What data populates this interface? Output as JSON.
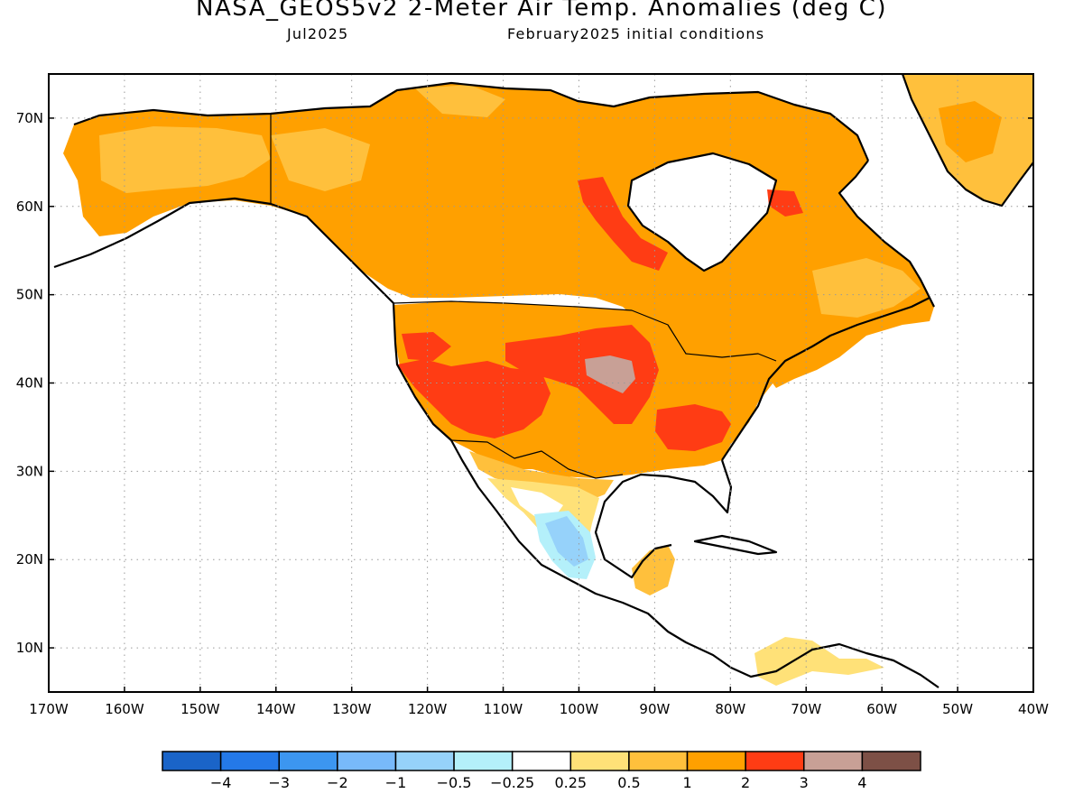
{
  "title": "NASA_GEOS5v2 2-Meter Air Temp. Anomalies (deg C)",
  "subtitle_left": "Jul2025",
  "subtitle_right": "February2025 initial conditions",
  "map": {
    "lon_range": [
      -170,
      -40
    ],
    "lat_range": [
      5,
      75
    ],
    "lat_ticks": [
      {
        "lat": 70,
        "label": "70N"
      },
      {
        "lat": 60,
        "label": "60N"
      },
      {
        "lat": 50,
        "label": "50N"
      },
      {
        "lat": 40,
        "label": "40N"
      },
      {
        "lat": 30,
        "label": "30N"
      },
      {
        "lat": 20,
        "label": "20N"
      },
      {
        "lat": 10,
        "label": "10N"
      }
    ],
    "lon_ticks": [
      {
        "lon": -170,
        "label": "170W"
      },
      {
        "lon": -160,
        "label": "160W"
      },
      {
        "lon": -150,
        "label": "150W"
      },
      {
        "lon": -140,
        "label": "140W"
      },
      {
        "lon": -130,
        "label": "130W"
      },
      {
        "lon": -120,
        "label": "120W"
      },
      {
        "lon": -110,
        "label": "110W"
      },
      {
        "lon": -100,
        "label": "100W"
      },
      {
        "lon": -90,
        "label": "90W"
      },
      {
        "lon": -80,
        "label": "80W"
      },
      {
        "lon": -70,
        "label": "70W"
      },
      {
        "lon": -60,
        "label": "60W"
      },
      {
        "lon": -50,
        "label": "50W"
      },
      {
        "lon": -40,
        "label": "40W"
      }
    ],
    "grid": "dotted"
  },
  "colorbar": {
    "colors": [
      "#1a64c8",
      "#2479e8",
      "#3c96f0",
      "#78b9fa",
      "#96d2fa",
      "#b4f0fa",
      "#ffffff",
      "#ffe178",
      "#ffc03c",
      "#ffa000",
      "#ff3c14",
      "#c8a096",
      "#7d5046"
    ],
    "labels": [
      "−4",
      "−3",
      "−2",
      "−1",
      "−0.5",
      "−0.25",
      "0.25",
      "0.5",
      "1",
      "2",
      "3",
      "4"
    ]
  },
  "colors": {
    "anom_05_1": "#ffc03c",
    "anom_1_2": "#ffa000",
    "anom_2_3": "#ff3c14",
    "anom_3_4": "#c8a096",
    "anom_025_05": "#ffe178",
    "anom_neg_05_1": "#96d2fa",
    "anom_neg_025_05": "#b4f0fa"
  }
}
